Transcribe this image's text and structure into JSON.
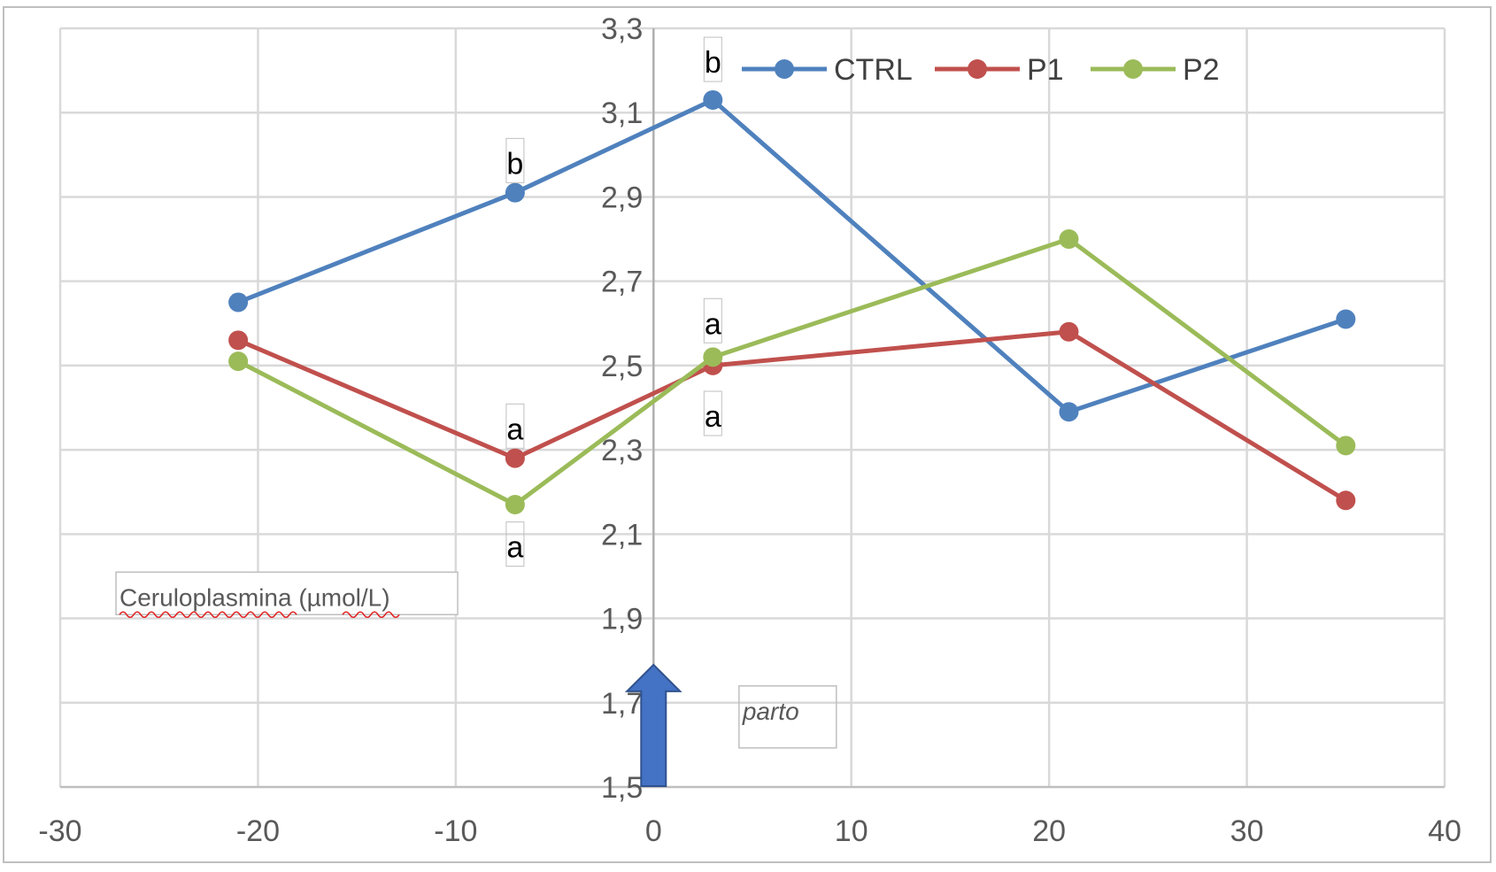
{
  "chart_data": {
    "type": "line",
    "title": "",
    "xlabel": "",
    "ylabel": "",
    "xlim": [
      -30,
      40
    ],
    "ylim": [
      1.5,
      3.3
    ],
    "x_ticks": [
      -30,
      -20,
      -10,
      0,
      10,
      20,
      30,
      40
    ],
    "x_tick_labels": [
      "-30",
      "-20",
      "-10",
      "0",
      "10",
      "20",
      "30",
      "40"
    ],
    "y_ticks": [
      1.5,
      1.7,
      1.9,
      2.1,
      2.3,
      2.5,
      2.7,
      2.9,
      3.1,
      3.3
    ],
    "y_tick_labels": [
      "1,5",
      "1,7",
      "1,9",
      "2,1",
      "2,3",
      "2,5",
      "2,7",
      "2,9",
      "3,1",
      "3,3"
    ],
    "grid": true,
    "legend_position": "top-right",
    "series": [
      {
        "name": "CTRL",
        "color": "#4f81bd",
        "x": [
          -21,
          -7,
          3,
          21,
          35
        ],
        "y": [
          2.65,
          2.91,
          3.13,
          2.39,
          2.61
        ]
      },
      {
        "name": "P1",
        "color": "#c0504d",
        "x": [
          -21,
          -7,
          3,
          21,
          35
        ],
        "y": [
          2.56,
          2.28,
          2.5,
          2.58,
          2.18
        ]
      },
      {
        "name": "P2",
        "color": "#9bbb59",
        "x": [
          -21,
          -7,
          3,
          21,
          35
        ],
        "y": [
          2.51,
          2.17,
          2.52,
          2.8,
          2.31
        ]
      }
    ],
    "annotations": [
      {
        "text": "b",
        "x": -7,
        "y": 2.98
      },
      {
        "text": "a",
        "x": -7,
        "y": 2.35
      },
      {
        "text": "a",
        "x": -7,
        "y": 2.07
      },
      {
        "text": "b",
        "x": 3,
        "y": 3.22
      },
      {
        "text": "a",
        "x": 3,
        "y": 2.6
      },
      {
        "text": "a",
        "x": 3,
        "y": 2.38
      }
    ],
    "text_boxes": [
      {
        "text": "Ceruloplasmina (µmol/L)",
        "x": -27,
        "y": 1.93
      },
      {
        "text": "parto",
        "x": 4.5,
        "y": 1.66
      }
    ],
    "arrow": {
      "x": 0,
      "y_from": 1.5,
      "y_to": 1.79,
      "color": "#4472c4"
    }
  }
}
